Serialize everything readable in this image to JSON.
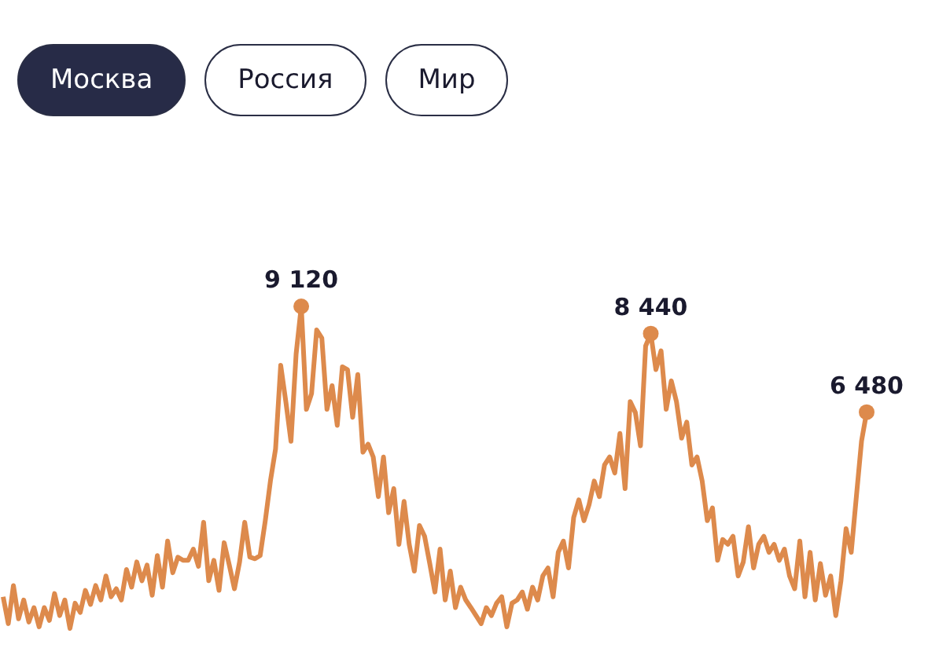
{
  "chart_data": {
    "type": "line",
    "annotations": [
      "Москва",
      "Россия",
      "Мир"
    ],
    "categories": [
      null,
      null,
      null,
      null,
      null,
      null,
      null,
      null,
      null,
      null,
      null,
      null,
      null,
      null,
      null,
      null,
      null,
      null,
      null,
      null,
      null,
      null,
      null,
      null,
      null,
      null,
      null,
      null,
      null,
      null,
      null,
      null,
      null,
      null,
      null,
      null,
      null,
      null,
      null,
      null,
      null,
      null,
      null,
      null,
      null,
      null,
      null,
      null,
      null,
      null,
      null,
      null,
      null,
      null,
      null,
      null,
      null,
      null,
      null,
      null,
      null,
      null,
      null,
      null,
      null,
      null,
      null,
      null,
      null,
      null,
      null,
      null,
      null,
      null,
      null,
      null,
      null,
      null,
      null,
      null,
      null,
      null,
      null,
      null,
      null,
      null,
      null,
      null,
      null,
      null,
      null,
      null,
      null,
      null,
      null,
      null,
      null,
      null,
      null,
      null,
      null,
      null,
      null,
      null,
      null,
      null,
      null,
      null,
      null,
      null,
      null,
      null,
      null,
      null,
      null,
      null,
      null,
      null,
      null,
      null,
      null,
      null,
      null,
      null,
      null,
      null,
      null,
      null,
      null,
      null,
      null,
      null,
      null,
      null,
      null,
      null,
      null,
      null,
      null,
      null,
      null,
      null,
      null,
      null,
      null,
      null,
      null,
      null,
      null,
      null,
      null,
      null,
      null,
      null,
      null,
      null,
      null,
      null,
      null,
      null,
      null,
      null,
      null,
      null,
      null,
      null,
      null,
      null,
      null
    ],
    "series": [
      {
        "color": "#dd8a4c",
        "values": [
          1870,
          1200,
          2150,
          1320,
          1790,
          1240,
          1600,
          1120,
          1600,
          1280,
          1950,
          1400,
          1790,
          1080,
          1710,
          1480,
          2030,
          1680,
          2150,
          1790,
          2390,
          1870,
          2070,
          1790,
          2550,
          2110,
          2740,
          2270,
          2660,
          1910,
          2900,
          2110,
          3260,
          2470,
          2860,
          2780,
          2780,
          3060,
          2630,
          3730,
          2270,
          2780,
          2030,
          3220,
          2660,
          2070,
          2740,
          3730,
          2860,
          2820,
          2900,
          3770,
          4760,
          5560,
          7650,
          6740,
          5750,
          7930,
          9120,
          6550,
          6940,
          8530,
          8330,
          6550,
          7140,
          6150,
          7610,
          7540,
          6350,
          7420,
          5480,
          5680,
          5360,
          4370,
          5360,
          3970,
          4570,
          3180,
          4250,
          3180,
          2510,
          3650,
          3380,
          2700,
          1990,
          3060,
          1790,
          2510,
          1600,
          2110,
          1790,
          1600,
          1400,
          1200,
          1600,
          1400,
          1710,
          1870,
          1120,
          1710,
          1790,
          1990,
          1560,
          2110,
          1790,
          2390,
          2590,
          1870,
          2980,
          3260,
          2590,
          3850,
          4290,
          3770,
          4170,
          4760,
          4370,
          5160,
          5360,
          4960,
          5950,
          4570,
          6740,
          6470,
          5640,
          8130,
          8440,
          7540,
          8010,
          6550,
          7260,
          6740,
          5830,
          6230,
          5160,
          5360,
          4760,
          3770,
          4090,
          2780,
          3300,
          3180,
          3380,
          2390,
          2740,
          3620,
          2590,
          3180,
          3380,
          2980,
          3180,
          2780,
          3060,
          2390,
          2070,
          3260,
          1870,
          2980,
          1790,
          2700,
          1910,
          2390,
          1400,
          2270,
          3570,
          2980,
          4370,
          5750,
          6480
        ],
        "value_labels": [
          null,
          null,
          null,
          null,
          null,
          null,
          null,
          null,
          null,
          null,
          null,
          null,
          null,
          null,
          null,
          null,
          null,
          null,
          null,
          null,
          null,
          null,
          null,
          null,
          null,
          null,
          null,
          null,
          null,
          null,
          null,
          null,
          null,
          null,
          null,
          null,
          null,
          null,
          null,
          null,
          null,
          null,
          null,
          null,
          null,
          null,
          null,
          null,
          null,
          null,
          null,
          null,
          null,
          null,
          null,
          null,
          null,
          null,
          "9 120",
          null,
          null,
          null,
          null,
          null,
          null,
          null,
          null,
          null,
          null,
          null,
          null,
          null,
          null,
          null,
          null,
          null,
          null,
          null,
          null,
          null,
          null,
          null,
          null,
          null,
          null,
          null,
          null,
          null,
          null,
          null,
          null,
          null,
          null,
          null,
          null,
          null,
          null,
          null,
          null,
          null,
          null,
          null,
          null,
          null,
          null,
          null,
          null,
          null,
          null,
          null,
          null,
          null,
          null,
          null,
          null,
          null,
          null,
          null,
          null,
          null,
          null,
          null,
          null,
          null,
          null,
          null,
          "8 440",
          null,
          null,
          null,
          null,
          null,
          null,
          null,
          null,
          null,
          null,
          null,
          null,
          null,
          null,
          null,
          null,
          null,
          null,
          null,
          null,
          null,
          null,
          null,
          null,
          null,
          null,
          null,
          null,
          null,
          null,
          null,
          null,
          null,
          null,
          null,
          null,
          null,
          null,
          null,
          null,
          null,
          "6 480"
        ]
      }
    ],
    "legend": false,
    "grid": false,
    "marker": "none",
    "line_style": "solid"
  }
}
